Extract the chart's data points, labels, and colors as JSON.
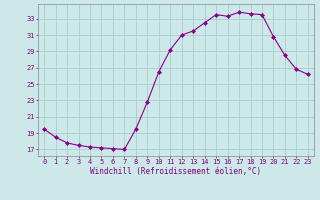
{
  "x": [
    0,
    1,
    2,
    3,
    4,
    5,
    6,
    7,
    8,
    9,
    10,
    11,
    12,
    13,
    14,
    15,
    16,
    17,
    18,
    19,
    20,
    21,
    22,
    23
  ],
  "y": [
    19.5,
    18.5,
    17.8,
    17.5,
    17.3,
    17.2,
    17.1,
    17.0,
    19.5,
    22.8,
    26.5,
    29.2,
    31.0,
    31.5,
    32.5,
    33.5,
    33.3,
    33.8,
    33.6,
    33.5,
    30.8,
    28.5,
    26.8,
    26.2
  ],
  "line_color": "#8b008b",
  "marker": "D",
  "marker_size": 2,
  "bg_color": "#cce8e8",
  "grid_color": "#aacccc",
  "xlabel": "Windchill (Refroidissement éolien,°C)",
  "ylabel_ticks": [
    17,
    19,
    21,
    23,
    25,
    27,
    29,
    31,
    33
  ],
  "xlim": [
    -0.5,
    23.5
  ],
  "ylim": [
    16.2,
    34.8
  ],
  "tick_label_color": "#800080",
  "xlabel_color": "#800080",
  "tick_fontsize": 5.0,
  "xlabel_fontsize": 5.5
}
